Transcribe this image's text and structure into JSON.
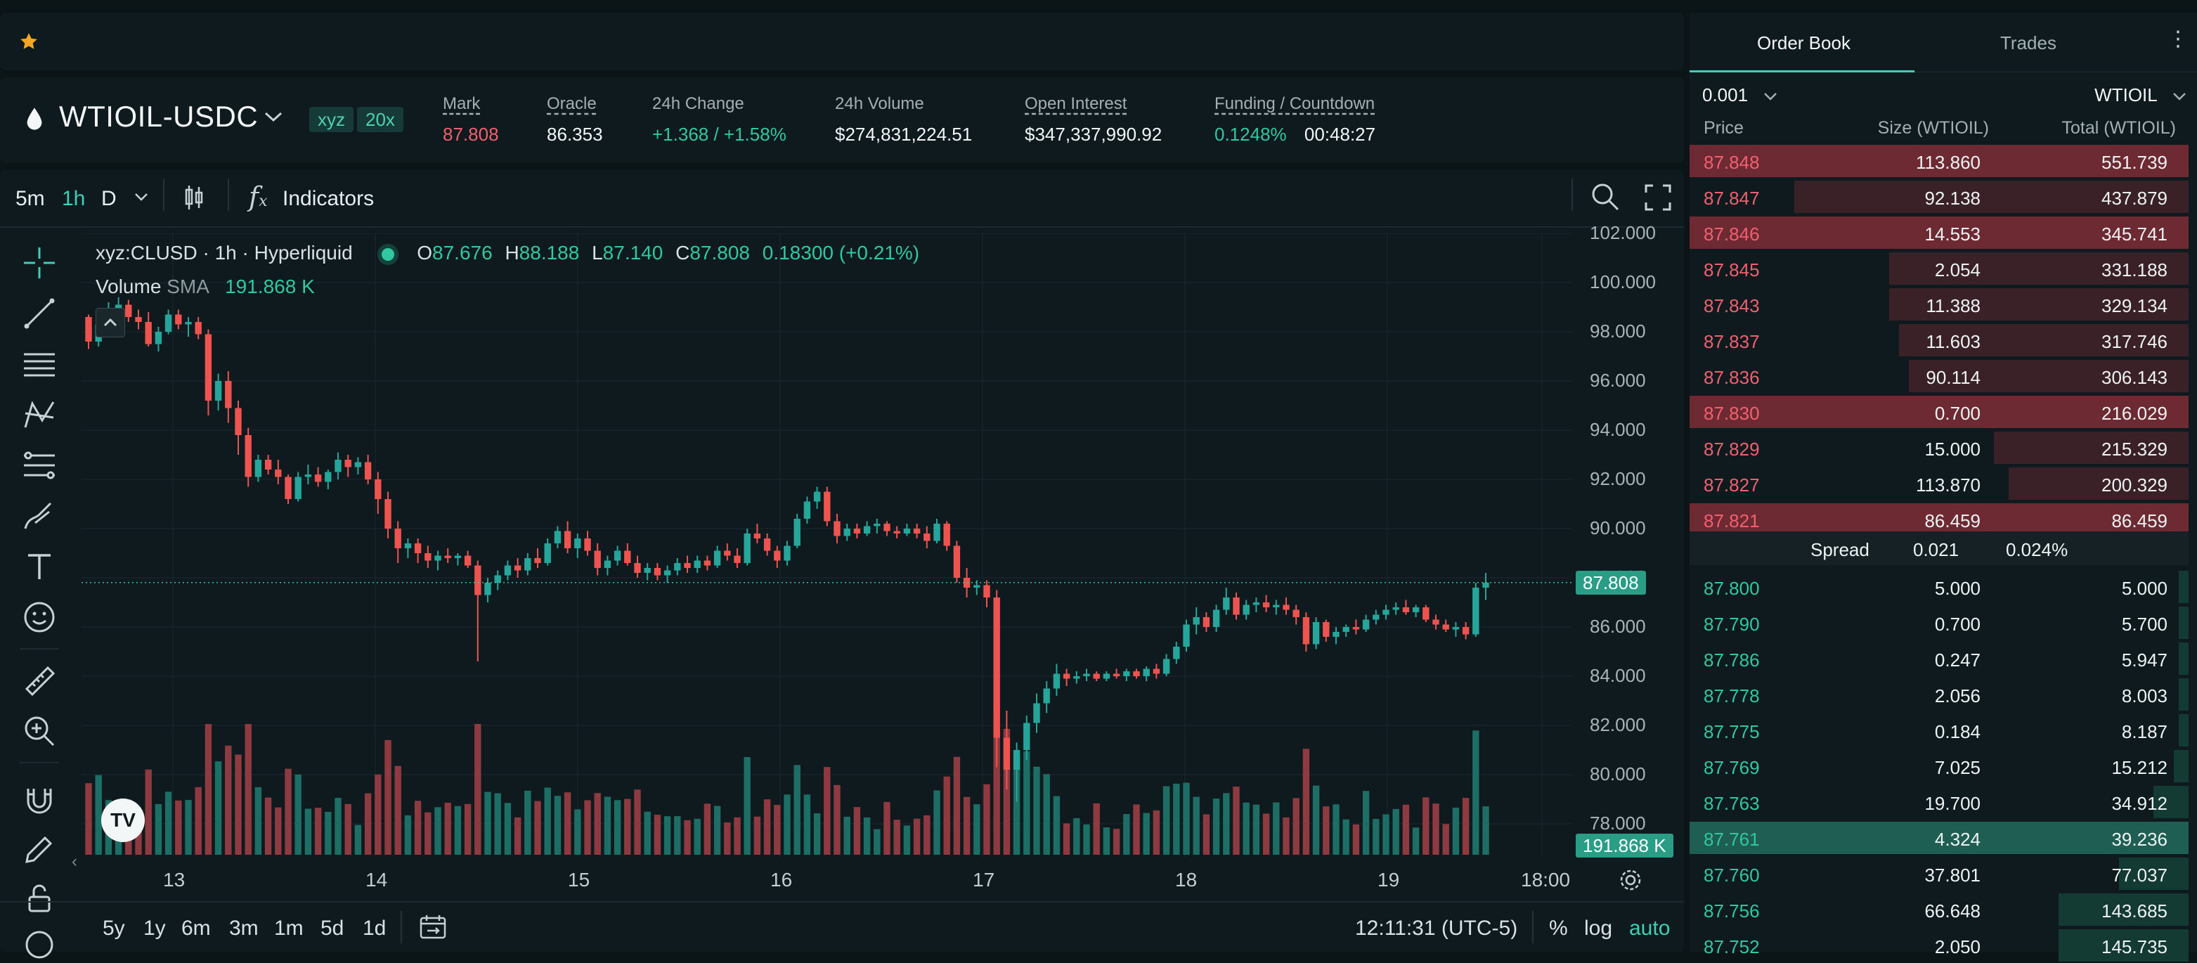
{
  "market": {
    "symbol": "WTIOIL-USDC",
    "badge_dex": "xyz",
    "badge_leverage": "20x",
    "mark_label": "Mark",
    "mark_value": "87.808",
    "oracle_label": "Oracle",
    "oracle_value": "86.353",
    "change_label": "24h Change",
    "change_value": "+1.368 / +1.58%",
    "volume_label": "24h Volume",
    "volume_value": "$274,831,224.51",
    "oi_label": "Open Interest",
    "oi_value": "$347,337,990.92",
    "funding_label": "Funding / Countdown",
    "funding_value": "0.1248%",
    "countdown_value": "00:48:27"
  },
  "toolbar": {
    "tf_5m": "5m",
    "tf_1h": "1h",
    "tf_D": "D",
    "indicators": "Indicators"
  },
  "legend": {
    "title": "xyz:CLUSD · 1h · Hyperliquid",
    "o_label": "O",
    "o_value": "87.676",
    "h_label": "H",
    "h_value": "88.188",
    "l_label": "L",
    "l_value": "87.140",
    "c_label": "C",
    "c_value": "87.808",
    "change": "0.18300 (+0.21%)",
    "volume_label": "Volume",
    "volume_sma": "SMA",
    "volume_value": "191.868 K"
  },
  "chart_data": {
    "type": "candlestick",
    "y_ticks": [
      "102.000",
      "100.000",
      "98.000",
      "96.000",
      "94.000",
      "92.000",
      "90.000",
      "88.000",
      "86.000",
      "84.000",
      "82.000",
      "80.000",
      "78.000"
    ],
    "x_ticks": [
      "13",
      "14",
      "15",
      "16",
      "17",
      "18",
      "19",
      "18:00"
    ],
    "last_price_tag": "87.808",
    "volume_tag": "191.868 K",
    "colors": {
      "up": "#26a69a",
      "down": "#ef5350"
    },
    "candles": [
      [
        98.6,
        98.7,
        97.3,
        97.6
      ],
      [
        97.6,
        98.4,
        97.4,
        98.3
      ],
      [
        98.3,
        99.2,
        98.0,
        98.9
      ],
      [
        98.9,
        99.4,
        98.6,
        99.1
      ],
      [
        99.1,
        99.3,
        98.4,
        98.6
      ],
      [
        98.6,
        98.9,
        98.1,
        98.4
      ],
      [
        98.4,
        98.8,
        97.4,
        97.5
      ],
      [
        97.5,
        98.2,
        97.2,
        98.0
      ],
      [
        98.0,
        98.9,
        97.9,
        98.7
      ],
      [
        98.7,
        98.9,
        98.1,
        98.3
      ],
      [
        98.3,
        98.6,
        97.8,
        98.4
      ],
      [
        98.4,
        98.6,
        97.7,
        97.9
      ],
      [
        97.9,
        98.1,
        94.6,
        95.2
      ],
      [
        95.2,
        96.3,
        94.8,
        96.0
      ],
      [
        96.0,
        96.4,
        94.3,
        94.9
      ],
      [
        94.9,
        95.2,
        93.0,
        93.8
      ],
      [
        93.8,
        94.1,
        91.7,
        92.1
      ],
      [
        92.1,
        93.0,
        91.9,
        92.8
      ],
      [
        92.8,
        93.0,
        92.2,
        92.4
      ],
      [
        92.4,
        92.8,
        91.8,
        92.1
      ],
      [
        92.1,
        92.2,
        91.0,
        91.2
      ],
      [
        91.2,
        92.3,
        91.1,
        92.1
      ],
      [
        92.1,
        92.6,
        91.8,
        92.2
      ],
      [
        92.2,
        92.5,
        91.7,
        91.9
      ],
      [
        91.9,
        92.4,
        91.6,
        92.3
      ],
      [
        92.3,
        93.1,
        92.0,
        92.8
      ],
      [
        92.8,
        93.0,
        92.1,
        92.5
      ],
      [
        92.5,
        92.9,
        92.2,
        92.7
      ],
      [
        92.7,
        93.0,
        91.8,
        92.0
      ],
      [
        92.0,
        92.3,
        90.6,
        91.2
      ],
      [
        91.2,
        91.5,
        89.6,
        90.0
      ],
      [
        90.0,
        90.3,
        88.6,
        89.2
      ],
      [
        89.2,
        89.6,
        88.8,
        89.4
      ],
      [
        89.4,
        89.6,
        88.6,
        89.0
      ],
      [
        89.0,
        89.3,
        88.4,
        88.7
      ],
      [
        88.7,
        89.1,
        88.3,
        88.9
      ],
      [
        88.9,
        89.2,
        88.6,
        88.8
      ],
      [
        88.8,
        89.0,
        88.5,
        88.9
      ],
      [
        88.9,
        89.1,
        88.4,
        88.5
      ],
      [
        88.5,
        88.7,
        84.6,
        87.3
      ],
      [
        87.3,
        88.0,
        87.0,
        87.8
      ],
      [
        87.8,
        88.3,
        87.5,
        88.1
      ],
      [
        88.1,
        88.7,
        87.9,
        88.5
      ],
      [
        88.5,
        88.8,
        88.0,
        88.3
      ],
      [
        88.3,
        89.0,
        88.1,
        88.8
      ],
      [
        88.8,
        89.2,
        88.4,
        88.6
      ],
      [
        88.6,
        89.6,
        88.5,
        89.4
      ],
      [
        89.4,
        90.1,
        89.2,
        89.9
      ],
      [
        89.9,
        90.3,
        89.0,
        89.2
      ],
      [
        89.2,
        89.8,
        88.8,
        89.6
      ],
      [
        89.6,
        89.9,
        88.9,
        89.1
      ],
      [
        89.1,
        89.4,
        88.1,
        88.4
      ],
      [
        88.4,
        88.9,
        88.1,
        88.7
      ],
      [
        88.7,
        89.3,
        88.5,
        89.1
      ],
      [
        89.1,
        89.4,
        88.5,
        88.6
      ],
      [
        88.6,
        88.9,
        88.0,
        88.2
      ],
      [
        88.2,
        88.6,
        87.9,
        88.4
      ],
      [
        88.4,
        88.6,
        87.9,
        88.1
      ],
      [
        88.1,
        88.5,
        87.8,
        88.3
      ],
      [
        88.3,
        88.8,
        88.1,
        88.6
      ],
      [
        88.6,
        88.9,
        88.2,
        88.4
      ],
      [
        88.4,
        88.9,
        88.2,
        88.7
      ],
      [
        88.7,
        88.9,
        88.3,
        88.5
      ],
      [
        88.5,
        89.3,
        88.4,
        89.1
      ],
      [
        89.1,
        89.4,
        88.7,
        88.9
      ],
      [
        88.9,
        89.2,
        88.4,
        88.6
      ],
      [
        88.6,
        90.0,
        88.5,
        89.8
      ],
      [
        89.8,
        90.2,
        89.4,
        89.6
      ],
      [
        89.6,
        89.8,
        88.9,
        89.1
      ],
      [
        89.1,
        89.3,
        88.4,
        88.7
      ],
      [
        88.7,
        89.5,
        88.5,
        89.3
      ],
      [
        89.3,
        90.6,
        89.2,
        90.4
      ],
      [
        90.4,
        91.3,
        90.2,
        91.1
      ],
      [
        91.1,
        91.7,
        90.8,
        91.5
      ],
      [
        91.5,
        91.7,
        90.1,
        90.3
      ],
      [
        90.3,
        90.6,
        89.4,
        89.7
      ],
      [
        89.7,
        90.2,
        89.5,
        90.0
      ],
      [
        90.0,
        90.2,
        89.6,
        89.8
      ],
      [
        89.8,
        90.3,
        89.7,
        90.1
      ],
      [
        90.1,
        90.4,
        89.8,
        90.2
      ],
      [
        90.2,
        90.3,
        89.7,
        89.9
      ],
      [
        89.9,
        90.1,
        89.6,
        89.8
      ],
      [
        89.8,
        90.2,
        89.7,
        90.0
      ],
      [
        90.0,
        90.2,
        89.6,
        89.8
      ],
      [
        89.8,
        90.1,
        89.2,
        89.5
      ],
      [
        89.5,
        90.4,
        89.4,
        90.2
      ],
      [
        90.2,
        90.3,
        89.1,
        89.3
      ],
      [
        89.3,
        89.5,
        87.8,
        88.0
      ],
      [
        88.0,
        88.4,
        87.2,
        87.6
      ],
      [
        87.6,
        87.9,
        87.3,
        87.7
      ],
      [
        87.7,
        87.9,
        86.8,
        87.2
      ],
      [
        87.2,
        87.5,
        80.3,
        81.5
      ],
      [
        81.5,
        82.6,
        79.4,
        80.2
      ],
      [
        80.2,
        81.3,
        78.9,
        81.0
      ],
      [
        81.0,
        82.4,
        80.6,
        82.1
      ],
      [
        82.1,
        83.3,
        81.7,
        82.9
      ],
      [
        82.9,
        83.8,
        82.5,
        83.5
      ],
      [
        83.5,
        84.5,
        83.2,
        84.1
      ],
      [
        84.1,
        84.3,
        83.6,
        83.9
      ],
      [
        83.9,
        84.2,
        83.7,
        84.0
      ],
      [
        84.0,
        84.3,
        83.8,
        84.1
      ],
      [
        84.1,
        84.2,
        83.8,
        83.9
      ],
      [
        83.9,
        84.2,
        83.8,
        84.1
      ],
      [
        84.1,
        84.3,
        83.9,
        84.0
      ],
      [
        84.0,
        84.3,
        83.8,
        84.2
      ],
      [
        84.2,
        84.3,
        83.9,
        84.0
      ],
      [
        84.0,
        84.4,
        83.8,
        84.3
      ],
      [
        84.3,
        84.5,
        83.9,
        84.1
      ],
      [
        84.1,
        84.9,
        84.0,
        84.7
      ],
      [
        84.7,
        85.4,
        84.5,
        85.2
      ],
      [
        85.2,
        86.3,
        85.0,
        86.1
      ],
      [
        86.1,
        86.8,
        85.7,
        86.4
      ],
      [
        86.4,
        86.6,
        85.8,
        86.0
      ],
      [
        86.0,
        86.9,
        85.8,
        86.7
      ],
      [
        86.7,
        87.6,
        86.5,
        87.2
      ],
      [
        87.2,
        87.4,
        86.3,
        86.5
      ],
      [
        86.5,
        87.1,
        86.3,
        86.9
      ],
      [
        86.9,
        87.2,
        86.6,
        87.0
      ],
      [
        87.0,
        87.3,
        86.6,
        86.8
      ],
      [
        86.8,
        87.1,
        86.5,
        86.9
      ],
      [
        86.9,
        87.2,
        86.5,
        86.7
      ],
      [
        86.7,
        86.9,
        86.1,
        86.4
      ],
      [
        86.4,
        86.6,
        85.0,
        85.3
      ],
      [
        85.3,
        86.4,
        85.1,
        86.2
      ],
      [
        86.2,
        86.3,
        85.4,
        85.6
      ],
      [
        85.6,
        86.0,
        85.3,
        85.8
      ],
      [
        85.8,
        86.1,
        85.6,
        86.0
      ],
      [
        86.0,
        86.3,
        85.7,
        85.9
      ],
      [
        85.9,
        86.5,
        85.8,
        86.3
      ],
      [
        86.3,
        86.7,
        86.1,
        86.5
      ],
      [
        86.5,
        86.9,
        86.3,
        86.7
      ],
      [
        86.7,
        87.0,
        86.5,
        86.8
      ],
      [
        86.8,
        87.1,
        86.5,
        86.6
      ],
      [
        86.6,
        86.9,
        86.4,
        86.8
      ],
      [
        86.8,
        86.9,
        86.2,
        86.3
      ],
      [
        86.3,
        86.5,
        85.9,
        86.1
      ],
      [
        86.1,
        86.3,
        85.8,
        85.9
      ],
      [
        85.9,
        86.2,
        85.6,
        86.0
      ],
      [
        86.0,
        86.2,
        85.5,
        85.7
      ],
      [
        85.7,
        87.8,
        85.6,
        87.6
      ],
      [
        87.6,
        88.2,
        87.1,
        87.8
      ]
    ]
  },
  "bottom": {
    "tf_5y": "5y",
    "tf_1y": "1y",
    "tf_6m": "6m",
    "tf_3m": "3m",
    "tf_1m": "1m",
    "tf_5d": "5d",
    "tf_1d": "1d",
    "time": "12:11:31 (UTC-5)",
    "pct": "%",
    "log": "log",
    "auto": "auto"
  },
  "orderbook": {
    "tab_orderbook": "Order Book",
    "tab_trades": "Trades",
    "tick": "0.001",
    "unit": "WTIOIL",
    "col_price": "Price",
    "col_size": "Size (WTIOIL)",
    "col_total": "Total (WTIOIL)",
    "spread_label": "Spread",
    "spread_value": "0.021",
    "spread_pct": "0.024%",
    "asks": [
      {
        "price": "87.848",
        "size": "113.860",
        "total": "551.739",
        "depth": 1.0,
        "hl": true
      },
      {
        "price": "87.847",
        "size": "92.138",
        "total": "437.879",
        "depth": 0.79,
        "hl": false
      },
      {
        "price": "87.846",
        "size": "14.553",
        "total": "345.741",
        "depth": 1.0,
        "hl": true
      },
      {
        "price": "87.845",
        "size": "2.054",
        "total": "331.188",
        "depth": 0.6,
        "hl": false
      },
      {
        "price": "87.843",
        "size": "11.388",
        "total": "329.134",
        "depth": 0.6,
        "hl": false
      },
      {
        "price": "87.837",
        "size": "11.603",
        "total": "317.746",
        "depth": 0.58,
        "hl": false
      },
      {
        "price": "87.836",
        "size": "90.114",
        "total": "306.143",
        "depth": 0.56,
        "hl": false
      },
      {
        "price": "87.830",
        "size": "0.700",
        "total": "216.029",
        "depth": 1.0,
        "hl": true
      },
      {
        "price": "87.829",
        "size": "15.000",
        "total": "215.329",
        "depth": 0.39,
        "hl": false
      },
      {
        "price": "87.827",
        "size": "113.870",
        "total": "200.329",
        "depth": 0.36,
        "hl": false
      },
      {
        "price": "87.821",
        "size": "86.459",
        "total": "86.459",
        "depth": 1.0,
        "hl": true
      }
    ],
    "bids": [
      {
        "price": "87.800",
        "size": "5.000",
        "total": "5.000",
        "depth": 0.02,
        "hl": false
      },
      {
        "price": "87.790",
        "size": "0.700",
        "total": "5.700",
        "depth": 0.02,
        "hl": false
      },
      {
        "price": "87.786",
        "size": "0.247",
        "total": "5.947",
        "depth": 0.02,
        "hl": false
      },
      {
        "price": "87.778",
        "size": "2.056",
        "total": "8.003",
        "depth": 0.02,
        "hl": false
      },
      {
        "price": "87.775",
        "size": "0.184",
        "total": "8.187",
        "depth": 0.02,
        "hl": false
      },
      {
        "price": "87.769",
        "size": "7.025",
        "total": "15.212",
        "depth": 0.03,
        "hl": false
      },
      {
        "price": "87.763",
        "size": "19.700",
        "total": "34.912",
        "depth": 0.07,
        "hl": false
      },
      {
        "price": "87.761",
        "size": "4.324",
        "total": "39.236",
        "depth": 1.0,
        "hl": true
      },
      {
        "price": "87.760",
        "size": "37.801",
        "total": "77.037",
        "depth": 0.14,
        "hl": false
      },
      {
        "price": "87.756",
        "size": "66.648",
        "total": "143.685",
        "depth": 0.26,
        "hl": false
      },
      {
        "price": "87.752",
        "size": "2.050",
        "total": "145.735",
        "depth": 0.26,
        "hl": false
      }
    ]
  }
}
